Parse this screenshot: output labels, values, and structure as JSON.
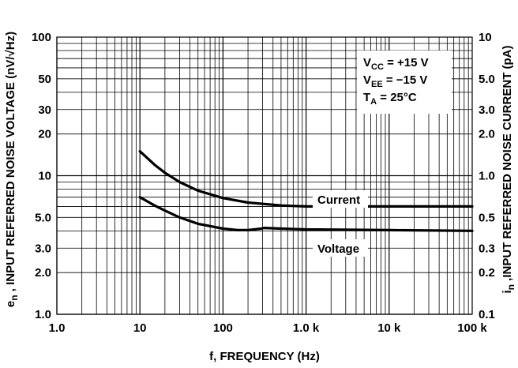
{
  "chart_data": {
    "type": "line",
    "xscale": "log",
    "yscale": "log",
    "grid": true,
    "xlim": [
      1,
      100000
    ],
    "ylim": [
      1,
      100
    ],
    "y2lim": [
      0.1,
      10
    ],
    "xlabel": "f, FREQUENCY (Hz)",
    "ylabel_prefix": "e",
    "ylabel_sub": "n",
    "ylabel": " , INPUT REFERRED NOISE VOLTAGE (nV/√Hz)",
    "y2label_prefix": "i",
    "y2label_sub": "n",
    "y2label": " ,INPUT REFERRED NOISE CURRENT (pA)",
    "xticks": [
      {
        "value": 1,
        "label": "1.0"
      },
      {
        "value": 10,
        "label": "10"
      },
      {
        "value": 100,
        "label": "100"
      },
      {
        "value": 1000,
        "label": "1.0 k"
      },
      {
        "value": 10000,
        "label": "10 k"
      },
      {
        "value": 100000,
        "label": "100 k"
      }
    ],
    "yticks": [
      {
        "value": 1,
        "label": "1.0"
      },
      {
        "value": 2,
        "label": "2.0"
      },
      {
        "value": 3,
        "label": "3.0"
      },
      {
        "value": 5,
        "label": "5.0"
      },
      {
        "value": 10,
        "label": "10"
      },
      {
        "value": 20,
        "label": "20"
      },
      {
        "value": 30,
        "label": "30"
      },
      {
        "value": 50,
        "label": "50"
      },
      {
        "value": 100,
        "label": "100"
      }
    ],
    "y2ticks": [
      {
        "value": 0.1,
        "label": "0.1"
      },
      {
        "value": 0.2,
        "label": "0.2"
      },
      {
        "value": 0.3,
        "label": "0.3"
      },
      {
        "value": 0.5,
        "label": "0.5"
      },
      {
        "value": 1,
        "label": "1.0"
      },
      {
        "value": 2,
        "label": "2.0"
      },
      {
        "value": 3,
        "label": "3.0"
      },
      {
        "value": 5,
        "label": "5.0"
      },
      {
        "value": 10,
        "label": "10"
      }
    ],
    "series": [
      {
        "name": "Current",
        "axis": "right",
        "points": [
          [
            10,
            1.5
          ],
          [
            15,
            1.2
          ],
          [
            20,
            1.05
          ],
          [
            30,
            0.9
          ],
          [
            50,
            0.78
          ],
          [
            100,
            0.69
          ],
          [
            200,
            0.64
          ],
          [
            500,
            0.61
          ],
          [
            1000,
            0.6
          ],
          [
            10000,
            0.6
          ],
          [
            100000,
            0.6
          ]
        ]
      },
      {
        "name": "Voltage",
        "axis": "left",
        "points": [
          [
            10,
            7.0
          ],
          [
            15,
            6.1
          ],
          [
            20,
            5.6
          ],
          [
            30,
            5.0
          ],
          [
            50,
            4.5
          ],
          [
            100,
            4.15
          ],
          [
            150,
            4.05
          ],
          [
            200,
            4.05
          ],
          [
            290,
            4.15
          ],
          [
            310,
            4.2
          ],
          [
            500,
            4.15
          ],
          [
            1000,
            4.1
          ],
          [
            10000,
            4.05
          ],
          [
            100000,
            4.0
          ]
        ]
      }
    ],
    "annotation": {
      "lines": [
        {
          "main": "V",
          "sub": "CC",
          "rest": " = +15 V"
        },
        {
          "main": "V",
          "sub": "EE",
          "rest": " = −15 V"
        },
        {
          "main": "T",
          "sub": "A",
          "rest": " = 25°C"
        }
      ]
    }
  }
}
